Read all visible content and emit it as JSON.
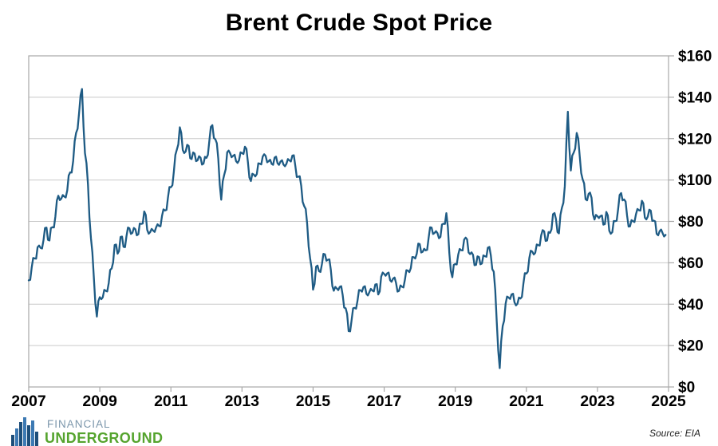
{
  "title": "Brent Crude Spot Price",
  "source_note": "Source: EIA",
  "logo": {
    "line1": "FINANCIAL",
    "line2": "UNDERGROUND",
    "icon": "skyline-bars-icon",
    "text_color_top": "#7b96ab",
    "text_color_bottom": "#55a42e",
    "bar_color_dark": "#1d4e7a",
    "bar_color_light": "#3c79b3"
  },
  "chart_data": {
    "type": "line",
    "title": "Brent Crude Spot Price",
    "series_name": "Brent crude spot price",
    "frequency": "monthly",
    "x_start": "2007-01",
    "x_end": "2024-12",
    "xlim": [
      2007,
      2025
    ],
    "ylim": [
      0,
      160
    ],
    "grid": "horizontal",
    "legend": "none",
    "x_ticks": [
      "2007",
      "2009",
      "2011",
      "2013",
      "2015",
      "2017",
      "2019",
      "2021",
      "2023",
      "2025"
    ],
    "y_ticks_top_down": [
      "$160",
      "$140",
      "$120",
      "$100",
      "$80",
      "$60",
      "$40",
      "$20",
      "$0"
    ],
    "line_color": "#1e5b84",
    "grid_color": "#c9c9c9",
    "frame_color": "#a8a8a8",
    "values": [
      51.5,
      57.6,
      62.1,
      67.5,
      67.2,
      71.1,
      77.0,
      70.8,
      77.2,
      82.3,
      92.4,
      91.0,
      92.0,
      95.0,
      103.7,
      109.1,
      122.8,
      132.3,
      144.0,
      113.0,
      97.7,
      71.9,
      52.5,
      34.0,
      43.4,
      43.3,
      46.5,
      50.2,
      57.3,
      68.6,
      64.4,
      72.5,
      67.7,
      72.8,
      76.7,
      74.5,
      76.2,
      73.8,
      78.8,
      84.8,
      75.9,
      74.8,
      75.6,
      77.1,
      77.8,
      82.7,
      85.3,
      91.4,
      96.5,
      104.0,
      114.6,
      125.5,
      114.5,
      113.8,
      116.5,
      110.1,
      112.8,
      109.5,
      110.8,
      107.9,
      110.7,
      119.3,
      126.5,
      119.7,
      110.3,
      90.5,
      102.6,
      113.4,
      112.9,
      111.7,
      109.1,
      109.5,
      113.0,
      116.1,
      108.5,
      99.5,
      102.6,
      102.9,
      107.9,
      111.3,
      111.6,
      109.1,
      107.8,
      110.8,
      108.1,
      108.9,
      107.5,
      107.8,
      109.5,
      111.8,
      106.8,
      101.6,
      97.1,
      87.4,
      79.0,
      62.3,
      47.0,
      58.1,
      55.9,
      59.5,
      64.1,
      61.5,
      56.6,
      46.5,
      47.6,
      48.4,
      44.3,
      38.0,
      27.0,
      32.2,
      38.2,
      41.6,
      46.7,
      48.3,
      45.0,
      45.8,
      46.6,
      49.5,
      44.7,
      53.3,
      54.6,
      54.9,
      51.6,
      52.3,
      50.3,
      46.4,
      48.5,
      51.7,
      56.2,
      57.5,
      62.7,
      64.4,
      69.1,
      65.3,
      66.0,
      72.1,
      77.0,
      74.4,
      74.3,
      72.5,
      78.9,
      84.0,
      64.8,
      53.0,
      59.4,
      64.0,
      66.1,
      71.2,
      71.3,
      64.2,
      63.9,
      59.0,
      62.8,
      59.7,
      63.2,
      67.3,
      63.7,
      55.7,
      32.0,
      9.1,
      29.4,
      40.3,
      43.2,
      44.7,
      40.9,
      40.2,
      42.7,
      50.0,
      54.8,
      62.3,
      65.4,
      64.8,
      68.5,
      73.2,
      75.2,
      70.8,
      74.5,
      83.5,
      81.1,
      74.2,
      86.5,
      97.1,
      133.0,
      104.6,
      113.3,
      122.7,
      111.9,
      100.4,
      90.7,
      93.3,
      91.4,
      80.9,
      82.5,
      82.6,
      78.4,
      84.6,
      75.5,
      74.8,
      80.1,
      86.2,
      93.7,
      90.6,
      82.9,
      77.6,
      80.1,
      83.5,
      85.4,
      90.0,
      81.8,
      82.3,
      85.2,
      80.4,
      74.0,
      75.3,
      74.3,
      73.5
    ]
  }
}
